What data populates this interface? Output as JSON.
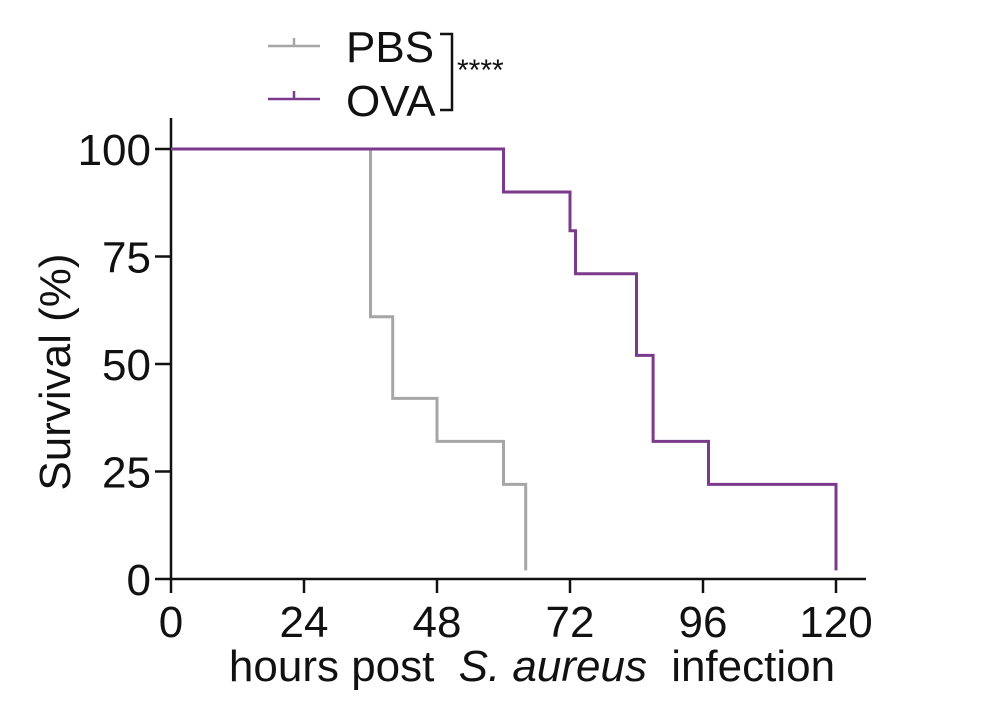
{
  "chart_data": {
    "type": "line",
    "step": true,
    "xlabel_prefix": "hours post",
    "xlabel_italic": "S. aureus",
    "xlabel_suffix": "infection",
    "ylabel": "Survival (%)",
    "xlim": [
      0,
      125
    ],
    "ylim": [
      0,
      100
    ],
    "xticks": [
      0,
      24,
      48,
      72,
      96,
      120
    ],
    "yticks": [
      0,
      25,
      50,
      75,
      100
    ],
    "series": [
      {
        "name": "PBS",
        "color": "#a6a6a6",
        "points": [
          [
            0,
            100
          ],
          [
            36,
            100
          ],
          [
            36,
            61
          ],
          [
            40,
            61
          ],
          [
            40,
            42
          ],
          [
            48,
            42
          ],
          [
            48,
            32
          ],
          [
            60,
            32
          ],
          [
            60,
            22
          ],
          [
            64,
            22
          ],
          [
            64,
            2
          ]
        ]
      },
      {
        "name": "OVA",
        "color": "#7b3a8c",
        "points": [
          [
            0,
            100
          ],
          [
            60,
            100
          ],
          [
            60,
            90
          ],
          [
            72,
            90
          ],
          [
            72,
            81
          ],
          [
            73,
            81
          ],
          [
            73,
            71
          ],
          [
            84,
            71
          ],
          [
            84,
            52
          ],
          [
            87,
            52
          ],
          [
            87,
            32
          ],
          [
            97,
            32
          ],
          [
            97,
            22
          ],
          [
            120,
            22
          ],
          [
            120,
            2
          ]
        ]
      }
    ],
    "significance": "****",
    "legend_position": "top"
  }
}
